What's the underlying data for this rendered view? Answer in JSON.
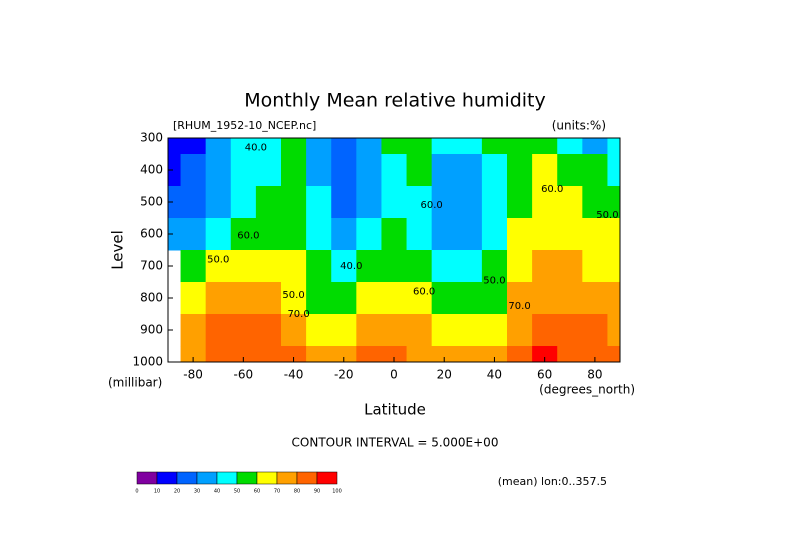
{
  "chart_data": {
    "type": "contour",
    "title": "Monthly Mean relative humidity",
    "subtitle": "[RHUM_1952-10_NCEP.nc]",
    "units": "(units:%)",
    "x_label": "Latitude",
    "x_unit": "(degrees_north)",
    "y_label": "Level",
    "y_unit": "(millibar)",
    "contour_note": "CONTOUR INTERVAL = 5.000E+00",
    "footnote": "(mean) lon:0..357.5",
    "x": [
      -90,
      -80,
      -70,
      -60,
      -50,
      -40,
      -30,
      -20,
      -10,
      0,
      10,
      20,
      30,
      40,
      50,
      60,
      70,
      80,
      90
    ],
    "y": [
      300,
      400,
      500,
      600,
      700,
      800,
      900,
      1000
    ],
    "z": [
      [
        10,
        15,
        30,
        40,
        45,
        52,
        35,
        28,
        32,
        52,
        58,
        45,
        40,
        52,
        58,
        52,
        45,
        35,
        40
      ],
      [
        15,
        20,
        35,
        42,
        48,
        52,
        38,
        25,
        35,
        48,
        50,
        38,
        35,
        48,
        58,
        62,
        55,
        50,
        48
      ],
      [
        20,
        25,
        38,
        45,
        52,
        55,
        40,
        25,
        35,
        45,
        45,
        30,
        35,
        45,
        58,
        65,
        62,
        55,
        52
      ],
      [
        30,
        35,
        48,
        58,
        58,
        58,
        45,
        32,
        42,
        52,
        48,
        35,
        38,
        48,
        60,
        65,
        65,
        62,
        60
      ],
      [
        null,
        55,
        62,
        65,
        65,
        62,
        50,
        40,
        50,
        58,
        55,
        42,
        42,
        50,
        65,
        70,
        70,
        68,
        65
      ],
      [
        null,
        65,
        72,
        72,
        72,
        65,
        55,
        50,
        60,
        65,
        62,
        50,
        50,
        55,
        70,
        75,
        75,
        72,
        70
      ],
      [
        null,
        70,
        82,
        82,
        80,
        72,
        65,
        68,
        72,
        78,
        72,
        62,
        62,
        65,
        72,
        82,
        82,
        80,
        78
      ],
      [
        null,
        75,
        85,
        88,
        85,
        80,
        78,
        78,
        80,
        80,
        78,
        72,
        72,
        75,
        82,
        90,
        88,
        85,
        82
      ]
    ],
    "xlim": [
      -90,
      90
    ],
    "ylim": [
      1000,
      300
    ],
    "xticks": [
      -80,
      -60,
      -40,
      -20,
      0,
      20,
      40,
      60,
      80
    ],
    "yticks": [
      300,
      400,
      500,
      600,
      700,
      800,
      900,
      1000
    ],
    "levels": [
      0,
      10,
      20,
      30,
      40,
      50,
      60,
      70,
      80,
      90,
      100
    ],
    "colors": [
      "#8000a0",
      "#0000ff",
      "#0064ff",
      "#00a0ff",
      "#00ffff",
      "#00dc00",
      "#ffff00",
      "#ffa000",
      "#ff6400",
      "#ff0000"
    ],
    "contour_labels": [
      {
        "text": "40.0",
        "x": -55,
        "y": 330
      },
      {
        "text": "60.0",
        "x": -58,
        "y": 605
      },
      {
        "text": "50.0",
        "x": -70,
        "y": 680
      },
      {
        "text": "50.0",
        "x": -40,
        "y": 790
      },
      {
        "text": "70.0",
        "x": -38,
        "y": 850
      },
      {
        "text": "40.0",
        "x": -17,
        "y": 700
      },
      {
        "text": "60.0",
        "x": 12,
        "y": 780
      },
      {
        "text": "60.0",
        "x": 15,
        "y": 510
      },
      {
        "text": "50.0",
        "x": 40,
        "y": 745
      },
      {
        "text": "70.0",
        "x": 50,
        "y": 825
      },
      {
        "text": "60.0",
        "x": 63,
        "y": 460
      },
      {
        "text": "50.0",
        "x": 85,
        "y": 540
      }
    ]
  }
}
